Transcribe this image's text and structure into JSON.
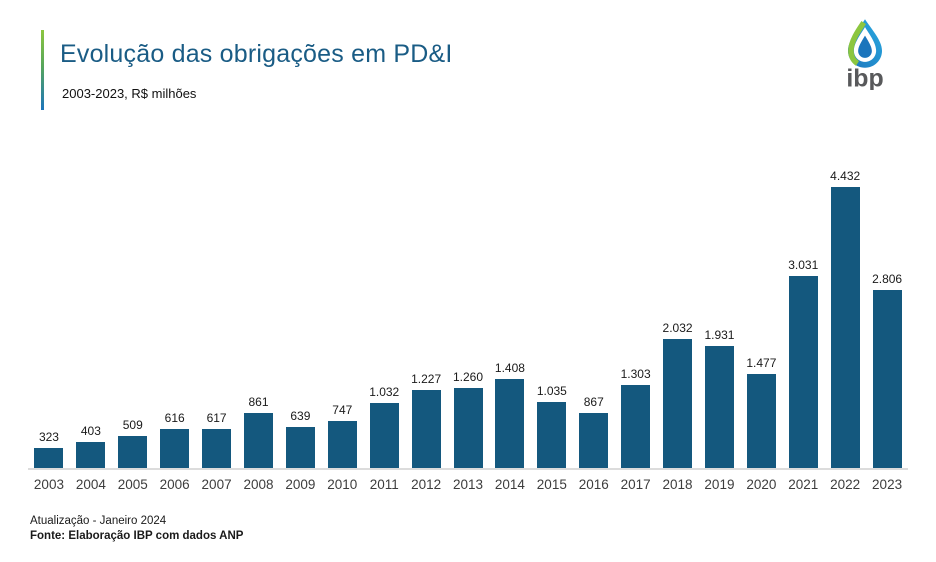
{
  "header": {
    "title": "Evolução das obrigações em PD&I",
    "subtitle": "2003-2023, R$ milhões"
  },
  "logo": {
    "name": "ibp-logo",
    "text": "ibp",
    "drop_green": "#8CC63F",
    "drop_blue": "#1C75BC",
    "drop_light_blue": "#29ABE2",
    "text_color": "#58595B"
  },
  "colors": {
    "bar": "#14587E",
    "title": "#1A5C85",
    "baseline": "#DCDCDC",
    "accent_green": "#8CC63F",
    "accent_blue": "#1C75BC"
  },
  "chart_data": {
    "type": "bar",
    "title": "Evolução das obrigações em PD&I",
    "subtitle": "2003-2023, R$ milhões",
    "unit": "R$ milhões",
    "categories": [
      "2003",
      "2004",
      "2005",
      "2006",
      "2007",
      "2008",
      "2009",
      "2010",
      "2011",
      "2012",
      "2013",
      "2014",
      "2015",
      "2016",
      "2017",
      "2018",
      "2019",
      "2020",
      "2021",
      "2022",
      "2023"
    ],
    "values": [
      323,
      403,
      509,
      616,
      617,
      861,
      639,
      747,
      1032,
      1227,
      1260,
      1408,
      1035,
      867,
      1303,
      2032,
      1931,
      1477,
      3031,
      4432,
      2806
    ],
    "value_labels": [
      "323",
      "403",
      "509",
      "616",
      "617",
      "861",
      "639",
      "747",
      "1.032",
      "1.227",
      "1.260",
      "1.408",
      "1.035",
      "867",
      "1.303",
      "2.032",
      "1.931",
      "1.477",
      "3.031",
      "4.432",
      "2.806"
    ],
    "ylim": [
      0,
      4500
    ],
    "grid": false,
    "legend": false,
    "data_labels": true,
    "bar_color": "#14587E"
  },
  "footer": {
    "update_line": "Atualização - Janeiro 2024",
    "source_line": "Fonte: Elaboração IBP com dados ANP"
  }
}
